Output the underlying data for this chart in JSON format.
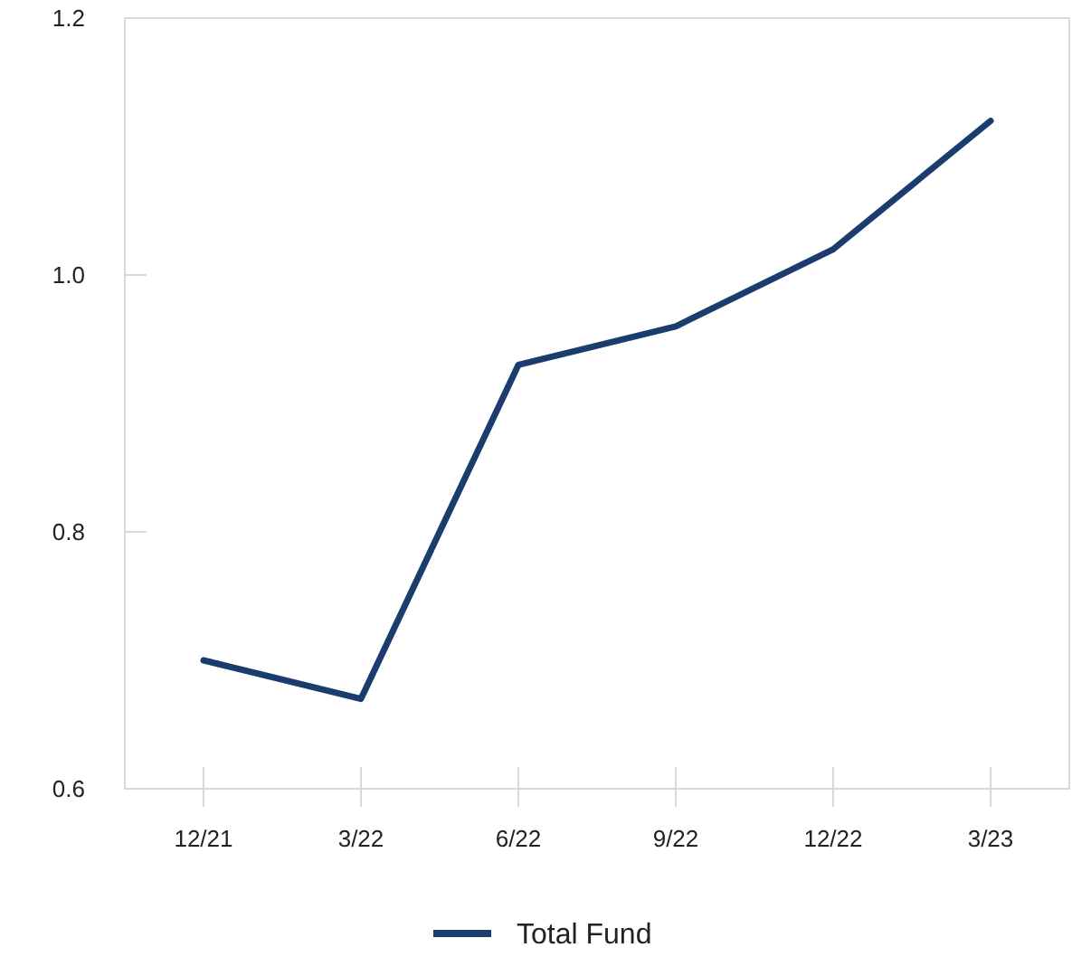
{
  "chart_data": {
    "type": "line",
    "categories": [
      "12/21",
      "3/22",
      "6/22",
      "9/22",
      "12/22",
      "3/23"
    ],
    "series": [
      {
        "name": "Total Fund",
        "color": "#1b3d6e",
        "values": [
          0.7,
          0.67,
          0.93,
          0.96,
          1.02,
          1.12
        ]
      }
    ],
    "ylim": [
      0.6,
      1.2
    ],
    "yticks": [
      {
        "value": 0.6,
        "label": "0.6"
      },
      {
        "value": 0.8,
        "label": "0.8"
      },
      {
        "value": 1.0,
        "label": "1.0"
      },
      {
        "value": 1.2,
        "label": "1.2"
      }
    ],
    "grid": false,
    "legend": "bottom",
    "marker": "none",
    "line_style": "solid"
  }
}
